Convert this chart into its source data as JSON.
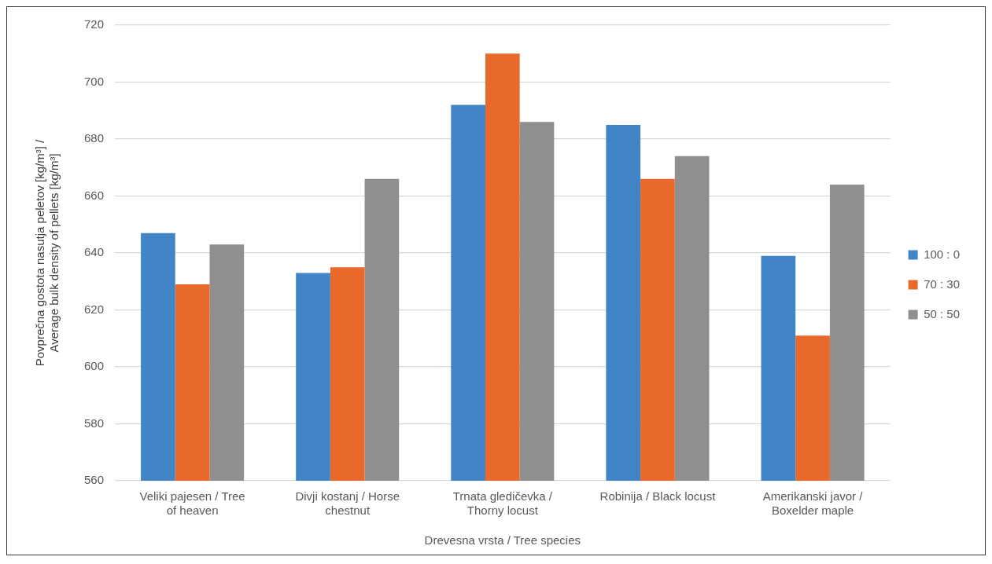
{
  "chart_data": {
    "type": "bar",
    "categories": [
      "Veliki pajesen / Tree of heaven",
      "Divji kostanj / Horse chestnut",
      "Trnata gledičevka / Thorny locust",
      "Robinija / Black locust",
      "Amerikanski javor / Boxelder maple"
    ],
    "series": [
      {
        "name": "100 : 0",
        "color": "#4285c6",
        "values": [
          647,
          633,
          692,
          685,
          639
        ]
      },
      {
        "name": "70 : 30",
        "color": "#e8692a",
        "values": [
          629,
          635,
          710,
          666,
          611
        ]
      },
      {
        "name": "50 : 50",
        "color": "#8f8f8f",
        "values": [
          643,
          666,
          686,
          674,
          664
        ]
      }
    ],
    "xlabel": "Drevesna vrsta / Tree species",
    "ylabel": "Povprečna gostota nasutja peletov [kg/m³] / Average bulk density of pellets [kg/m³]",
    "ylim": [
      560,
      720
    ],
    "yticks": [
      560,
      580,
      600,
      620,
      640,
      660,
      680,
      700,
      720
    ],
    "grid": "y",
    "legend": "right"
  }
}
